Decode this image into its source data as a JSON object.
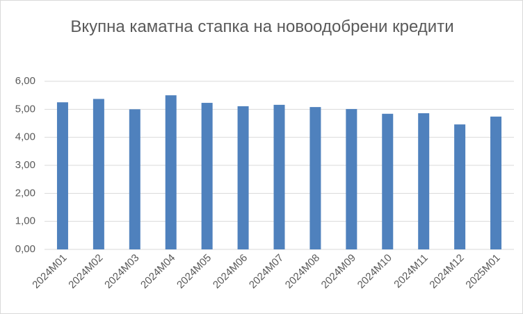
{
  "chart_data": {
    "type": "bar",
    "title": "Вкупна каматна стапка на новоодобрени кредити",
    "categories": [
      "2024M01",
      "2024M02",
      "2024M03",
      "2024M04",
      "2024M05",
      "2024M06",
      "2024M07",
      "2024M08",
      "2024M09",
      "2024M10",
      "2024M11",
      "2024M12",
      "2025M01"
    ],
    "values": [
      5.25,
      5.37,
      5.0,
      5.5,
      5.23,
      5.11,
      5.16,
      5.08,
      5.01,
      4.84,
      4.86,
      4.46,
      4.74
    ],
    "color": "#4f81bd",
    "ylim": [
      0,
      6
    ],
    "yticks": [
      {
        "value": 0,
        "label": "0,00"
      },
      {
        "value": 1,
        "label": "1,00"
      },
      {
        "value": 2,
        "label": "2,00"
      },
      {
        "value": 3,
        "label": "3,00"
      },
      {
        "value": 4,
        "label": "4,00"
      },
      {
        "value": 5,
        "label": "5,00"
      },
      {
        "value": 6,
        "label": "6,00"
      }
    ],
    "grid": true
  }
}
